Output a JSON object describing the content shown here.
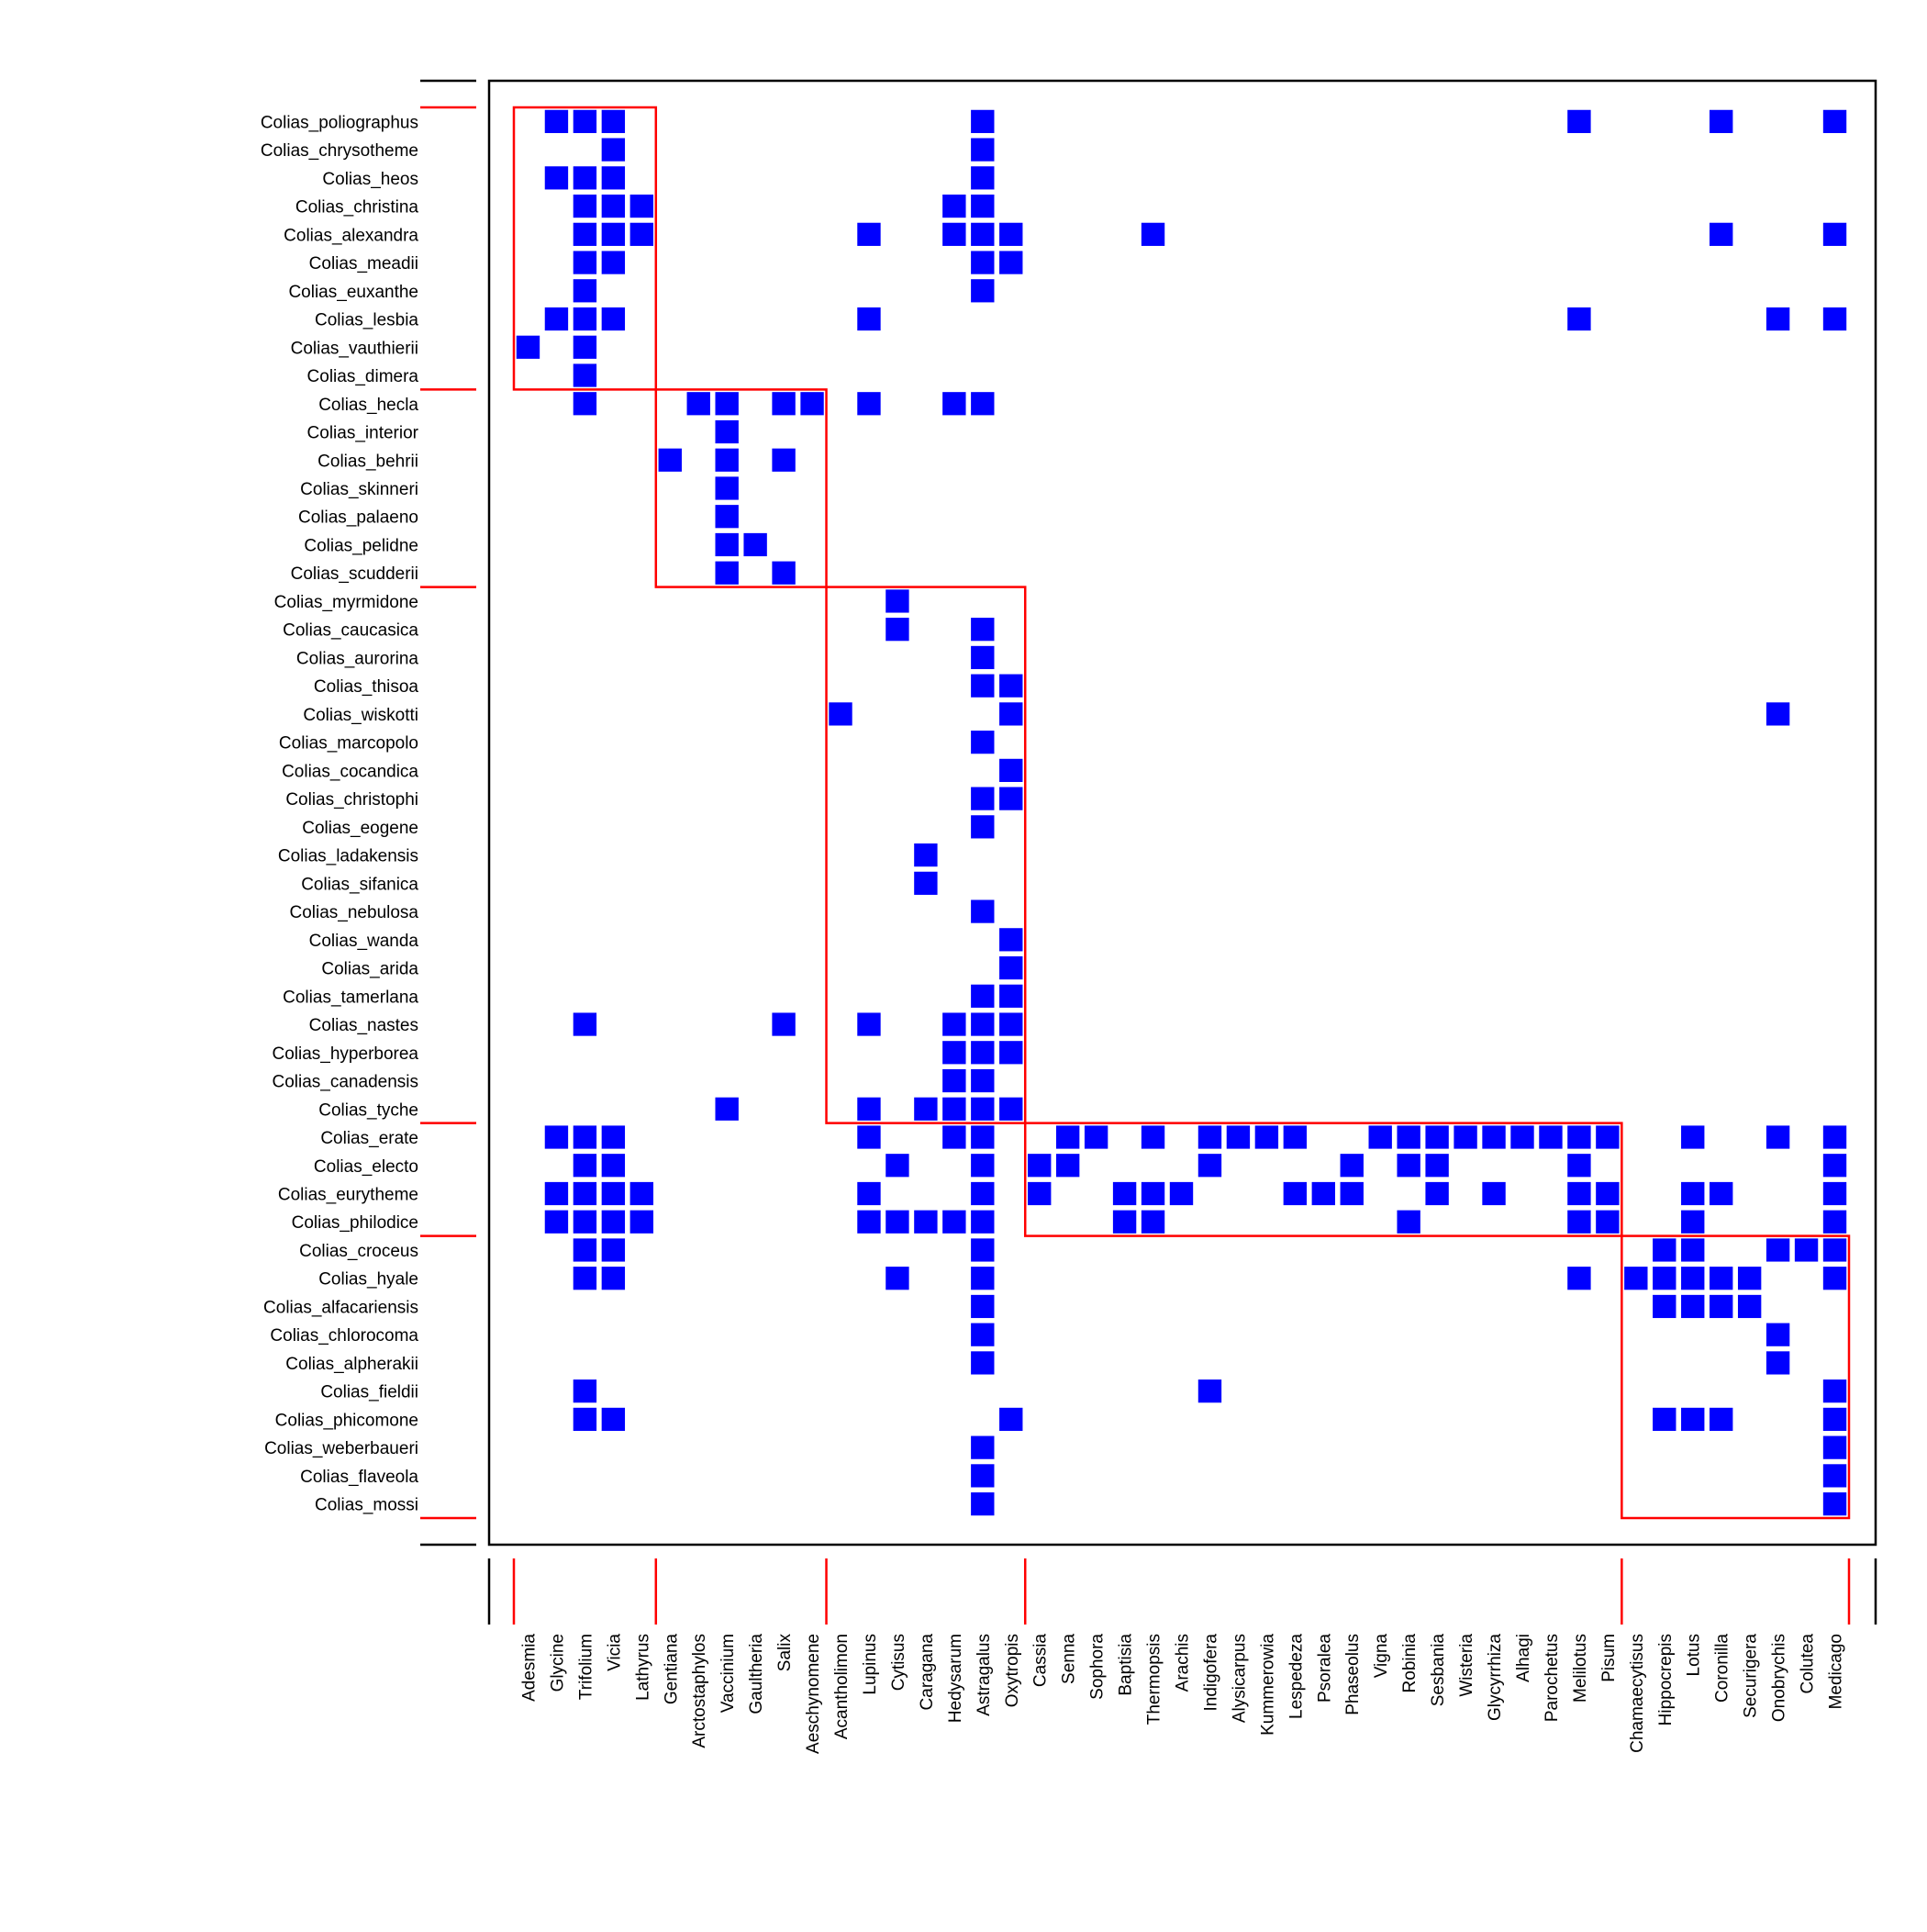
{
  "chart_data": {
    "type": "heatmap",
    "title": "",
    "xlabel": "",
    "ylabel": "",
    "colors": {
      "cell": "#0000ff",
      "module": "#ff0000",
      "frame": "#000000"
    },
    "rows": [
      "Colias_poliographus",
      "Colias_chrysotheme",
      "Colias_heos",
      "Colias_christina",
      "Colias_alexandra",
      "Colias_meadii",
      "Colias_euxanthe",
      "Colias_lesbia",
      "Colias_vauthierii",
      "Colias_dimera",
      "Colias_hecla",
      "Colias_interior",
      "Colias_behrii",
      "Colias_skinneri",
      "Colias_palaeno",
      "Colias_pelidne",
      "Colias_scudderii",
      "Colias_myrmidone",
      "Colias_caucasica",
      "Colias_aurorina",
      "Colias_thisoa",
      "Colias_wiskotti",
      "Colias_marcopolo",
      "Colias_cocandica",
      "Colias_christophi",
      "Colias_eogene",
      "Colias_ladakensis",
      "Colias_sifanica",
      "Colias_nebulosa",
      "Colias_wanda",
      "Colias_arida",
      "Colias_tamerlana",
      "Colias_nastes",
      "Colias_hyperborea",
      "Colias_canadensis",
      "Colias_tyche",
      "Colias_erate",
      "Colias_electo",
      "Colias_eurytheme",
      "Colias_philodice",
      "Colias_croceus",
      "Colias_hyale",
      "Colias_alfacariensis",
      "Colias_chlorocoma",
      "Colias_alpherakii",
      "Colias_fieldii",
      "Colias_phicomone",
      "Colias_weberbaueri",
      "Colias_flaveola",
      "Colias_mossi"
    ],
    "columns": [
      "Adesmia",
      "Glycine",
      "Trifolium",
      "Vicia",
      "Lathyrus",
      "Gentiana",
      "Arctostaphylos",
      "Vaccinium",
      "Gaultheria",
      "Salix",
      "Aeschynomene",
      "Acantholimon",
      "Lupinus",
      "Cytisus",
      "Caragana",
      "Hedysarum",
      "Astragalus",
      "Oxytropis",
      "Cassia",
      "Senna",
      "Sophora",
      "Baptisia",
      "Thermopsis",
      "Arachis",
      "Indigofera",
      "Alysicarpus",
      "Kummerowia",
      "Lespedeza",
      "Psoralea",
      "Phaseolus",
      "Vigna",
      "Robinia",
      "Sesbania",
      "Wisteria",
      "Glycyrrhiza",
      "Alhagi",
      "Parochetus",
      "Melilotus",
      "Pisum",
      "Chamaecytisus",
      "Hippocrepis",
      "Lotus",
      "Coronilla",
      "Securigera",
      "Onobrychis",
      "Colutea",
      "Medicago"
    ],
    "module_row_breaks": [
      10,
      17,
      36,
      40
    ],
    "module_col_breaks": [
      5,
      11,
      18,
      39
    ],
    "cells": [
      [
        0,
        1
      ],
      [
        0,
        2
      ],
      [
        0,
        3
      ],
      [
        0,
        16
      ],
      [
        0,
        37
      ],
      [
        0,
        42
      ],
      [
        0,
        46
      ],
      [
        1,
        3
      ],
      [
        1,
        16
      ],
      [
        2,
        1
      ],
      [
        2,
        2
      ],
      [
        2,
        3
      ],
      [
        2,
        16
      ],
      [
        3,
        2
      ],
      [
        3,
        3
      ],
      [
        3,
        4
      ],
      [
        3,
        15
      ],
      [
        3,
        16
      ],
      [
        4,
        2
      ],
      [
        4,
        3
      ],
      [
        4,
        4
      ],
      [
        4,
        12
      ],
      [
        4,
        15
      ],
      [
        4,
        16
      ],
      [
        4,
        17
      ],
      [
        4,
        22
      ],
      [
        4,
        42
      ],
      [
        4,
        46
      ],
      [
        5,
        2
      ],
      [
        5,
        3
      ],
      [
        5,
        16
      ],
      [
        5,
        17
      ],
      [
        6,
        2
      ],
      [
        6,
        16
      ],
      [
        7,
        1
      ],
      [
        7,
        2
      ],
      [
        7,
        3
      ],
      [
        7,
        12
      ],
      [
        7,
        37
      ],
      [
        7,
        44
      ],
      [
        7,
        46
      ],
      [
        8,
        0
      ],
      [
        8,
        2
      ],
      [
        9,
        2
      ],
      [
        10,
        2
      ],
      [
        10,
        6
      ],
      [
        10,
        7
      ],
      [
        10,
        9
      ],
      [
        10,
        10
      ],
      [
        10,
        12
      ],
      [
        10,
        15
      ],
      [
        10,
        16
      ],
      [
        11,
        7
      ],
      [
        12,
        5
      ],
      [
        12,
        7
      ],
      [
        12,
        9
      ],
      [
        13,
        7
      ],
      [
        14,
        7
      ],
      [
        15,
        7
      ],
      [
        15,
        8
      ],
      [
        16,
        7
      ],
      [
        16,
        9
      ],
      [
        17,
        13
      ],
      [
        18,
        13
      ],
      [
        18,
        16
      ],
      [
        19,
        16
      ],
      [
        20,
        16
      ],
      [
        20,
        17
      ],
      [
        21,
        11
      ],
      [
        21,
        17
      ],
      [
        21,
        44
      ],
      [
        22,
        16
      ],
      [
        23,
        17
      ],
      [
        24,
        16
      ],
      [
        24,
        17
      ],
      [
        25,
        16
      ],
      [
        26,
        14
      ],
      [
        27,
        14
      ],
      [
        28,
        16
      ],
      [
        29,
        17
      ],
      [
        30,
        17
      ],
      [
        31,
        16
      ],
      [
        31,
        17
      ],
      [
        32,
        2
      ],
      [
        32,
        9
      ],
      [
        32,
        12
      ],
      [
        32,
        15
      ],
      [
        32,
        16
      ],
      [
        32,
        17
      ],
      [
        33,
        15
      ],
      [
        33,
        16
      ],
      [
        33,
        17
      ],
      [
        34,
        15
      ],
      [
        34,
        16
      ],
      [
        35,
        7
      ],
      [
        35,
        12
      ],
      [
        35,
        14
      ],
      [
        35,
        15
      ],
      [
        35,
        16
      ],
      [
        35,
        17
      ],
      [
        36,
        1
      ],
      [
        36,
        2
      ],
      [
        36,
        3
      ],
      [
        36,
        12
      ],
      [
        36,
        15
      ],
      [
        36,
        16
      ],
      [
        36,
        19
      ],
      [
        36,
        20
      ],
      [
        36,
        22
      ],
      [
        36,
        24
      ],
      [
        36,
        25
      ],
      [
        36,
        26
      ],
      [
        36,
        27
      ],
      [
        36,
        30
      ],
      [
        36,
        31
      ],
      [
        36,
        32
      ],
      [
        36,
        33
      ],
      [
        36,
        34
      ],
      [
        36,
        35
      ],
      [
        36,
        36
      ],
      [
        36,
        37
      ],
      [
        36,
        38
      ],
      [
        36,
        41
      ],
      [
        36,
        44
      ],
      [
        36,
        46
      ],
      [
        37,
        2
      ],
      [
        37,
        3
      ],
      [
        37,
        13
      ],
      [
        37,
        16
      ],
      [
        37,
        18
      ],
      [
        37,
        19
      ],
      [
        37,
        24
      ],
      [
        37,
        29
      ],
      [
        37,
        31
      ],
      [
        37,
        32
      ],
      [
        37,
        37
      ],
      [
        37,
        46
      ],
      [
        38,
        1
      ],
      [
        38,
        2
      ],
      [
        38,
        3
      ],
      [
        38,
        4
      ],
      [
        38,
        12
      ],
      [
        38,
        16
      ],
      [
        38,
        18
      ],
      [
        38,
        21
      ],
      [
        38,
        22
      ],
      [
        38,
        23
      ],
      [
        38,
        27
      ],
      [
        38,
        28
      ],
      [
        38,
        29
      ],
      [
        38,
        32
      ],
      [
        38,
        34
      ],
      [
        38,
        37
      ],
      [
        38,
        38
      ],
      [
        38,
        41
      ],
      [
        38,
        42
      ],
      [
        38,
        46
      ],
      [
        39,
        1
      ],
      [
        39,
        2
      ],
      [
        39,
        3
      ],
      [
        39,
        4
      ],
      [
        39,
        12
      ],
      [
        39,
        13
      ],
      [
        39,
        14
      ],
      [
        39,
        15
      ],
      [
        39,
        16
      ],
      [
        39,
        21
      ],
      [
        39,
        22
      ],
      [
        39,
        31
      ],
      [
        39,
        37
      ],
      [
        39,
        38
      ],
      [
        39,
        41
      ],
      [
        39,
        46
      ],
      [
        40,
        2
      ],
      [
        40,
        3
      ],
      [
        40,
        16
      ],
      [
        40,
        40
      ],
      [
        40,
        41
      ],
      [
        40,
        44
      ],
      [
        40,
        45
      ],
      [
        40,
        46
      ],
      [
        41,
        2
      ],
      [
        41,
        3
      ],
      [
        41,
        13
      ],
      [
        41,
        16
      ],
      [
        41,
        37
      ],
      [
        41,
        39
      ],
      [
        41,
        40
      ],
      [
        41,
        41
      ],
      [
        41,
        42
      ],
      [
        41,
        43
      ],
      [
        41,
        46
      ],
      [
        42,
        16
      ],
      [
        42,
        40
      ],
      [
        42,
        41
      ],
      [
        42,
        42
      ],
      [
        42,
        43
      ],
      [
        43,
        16
      ],
      [
        43,
        44
      ],
      [
        44,
        16
      ],
      [
        44,
        44
      ],
      [
        45,
        2
      ],
      [
        45,
        24
      ],
      [
        45,
        46
      ],
      [
        46,
        2
      ],
      [
        46,
        3
      ],
      [
        46,
        17
      ],
      [
        46,
        40
      ],
      [
        46,
        41
      ],
      [
        46,
        42
      ],
      [
        46,
        46
      ],
      [
        47,
        16
      ],
      [
        47,
        46
      ],
      [
        48,
        16
      ],
      [
        48,
        46
      ],
      [
        49,
        16
      ],
      [
        49,
        46
      ]
    ]
  }
}
